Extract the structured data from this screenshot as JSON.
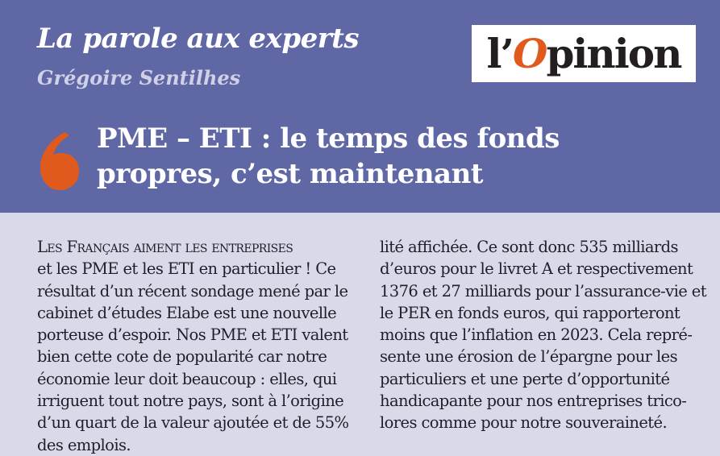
{
  "header": {
    "kicker": "La parole aux experts",
    "author": "Grégoire Sentilhes",
    "logo": {
      "prefix": "l’",
      "accent": "O",
      "suffix": "pinion"
    },
    "headline_lines": [
      "PME – ETI : le temps des fonds",
      "propres, c’est maintenant"
    ],
    "quote_mark_icon": "opening-quote-icon"
  },
  "article": {
    "left_lines": [
      "Les Français aiment les entreprises",
      "et les PME et les ETI en particulier ! Ce",
      "résultat d’un récent sondage mené par le",
      "cabinet d’études Elabe est une nouvelle",
      "porteuse d’espoir. Nos PME et ETI valent",
      "bien cette cote de popularité car notre",
      "économie leur doit beaucoup : elles, qui",
      "irriguent tout notre pays, sont à l’origine",
      "d’un quart de la valeur ajoutée et de 55%",
      "des emplois."
    ],
    "right_lines": [
      "lité affichée. Ce sont donc 535 milliards",
      "d’euros pour le livret A et respectivement",
      "1376 et 27 milliards pour l’assurance-vie et",
      "le PER en fonds euros, qui rapporteront",
      "moins que l’inflation en 2023. Cela repré-",
      "sente une érosion de l’épargne pour les",
      "particuliers et une perte d’opportunité",
      "handicapante pour nos entreprises trico-",
      "lores comme pour notre souveraineté."
    ]
  },
  "colors": {
    "header_bg": "#6067a5",
    "body_bg": "#d9dae9",
    "accent": "#e05a1e",
    "text": "#1f1f2b"
  }
}
